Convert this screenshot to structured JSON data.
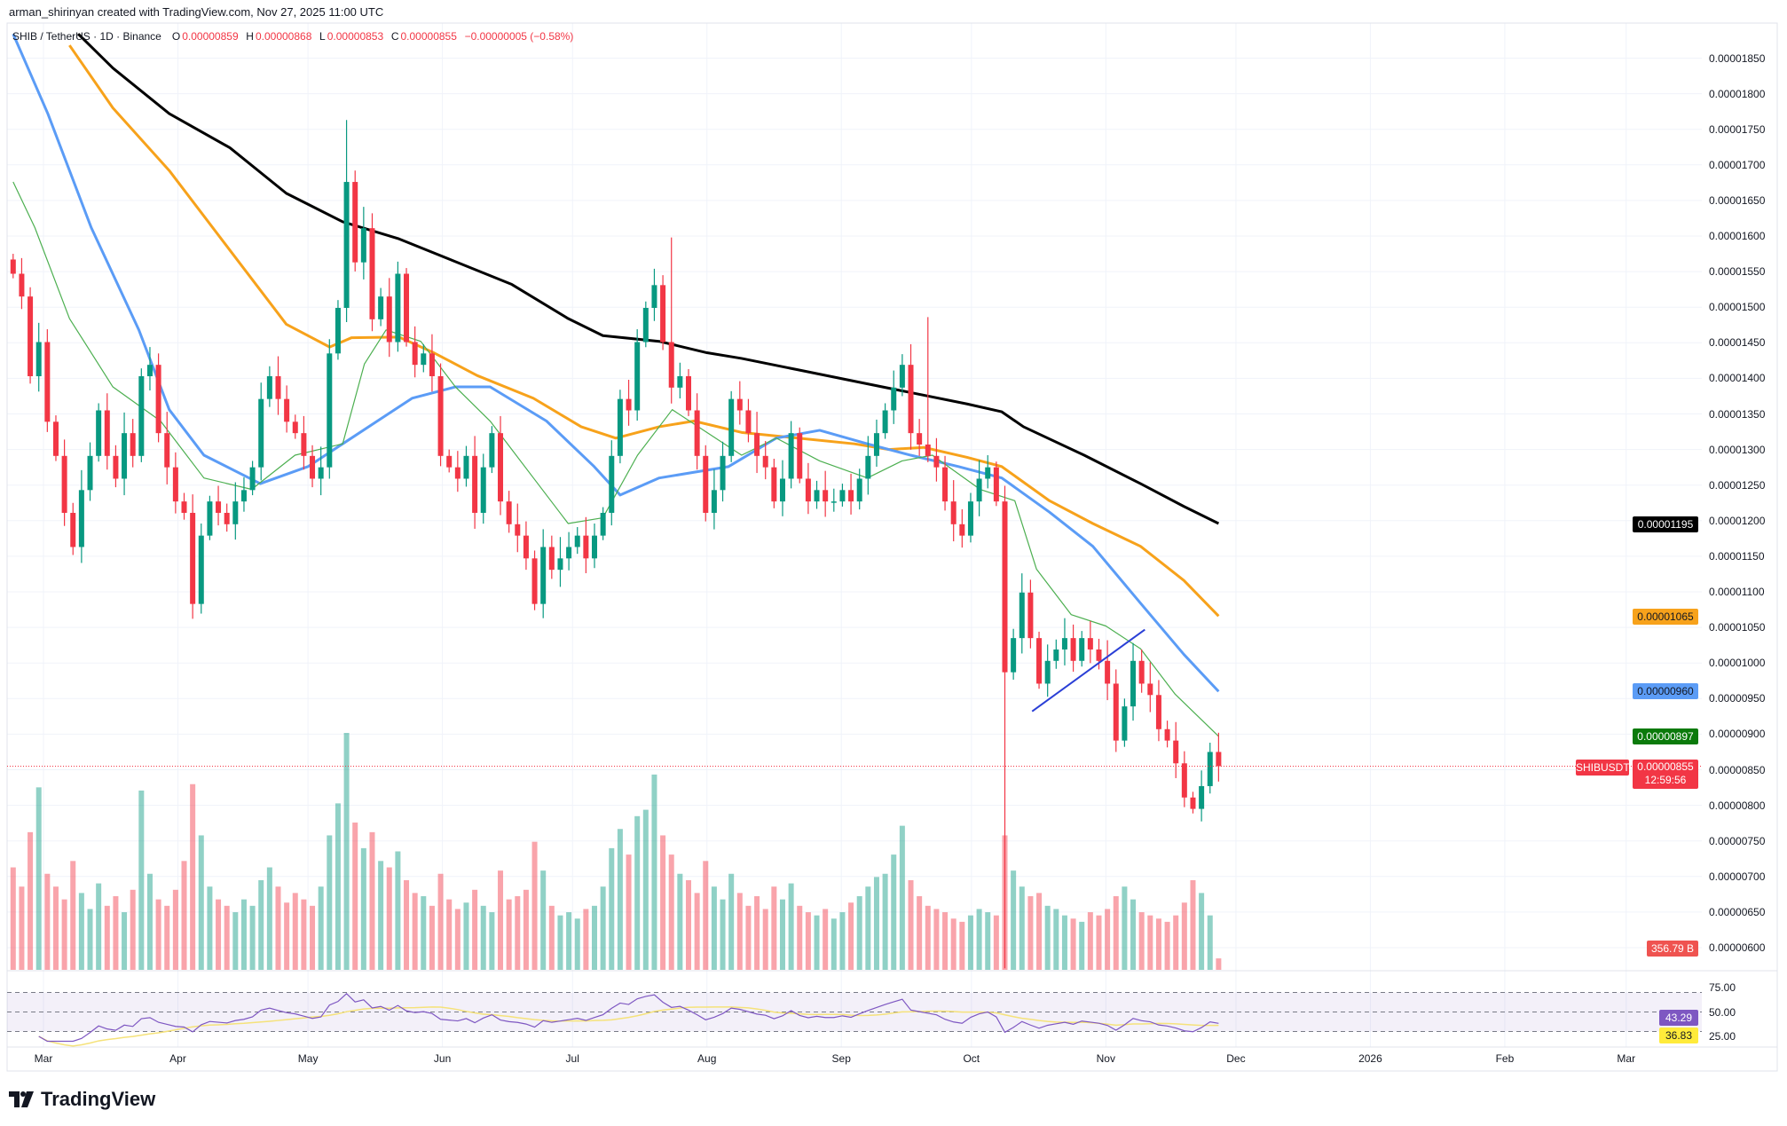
{
  "header": {
    "credit": "arman_shirinyan created with TradingView.com, Nov 27, 2025 11:00 UTC"
  },
  "legend": {
    "symbol": "SHIB / TetherUS · 1D · Binance",
    "o_label": "O",
    "o": "0.00000859",
    "h_label": "H",
    "h": "0.00000868",
    "l_label": "L",
    "l": "0.00000853",
    "c_label": "C",
    "c": "0.00000855",
    "change": "−0.00000005 (−0.58%)"
  },
  "badges": {
    "ma200": "0.00001195",
    "ma100": "0.00001065",
    "ma50": "0.00000960",
    "ma20": "0.00000897",
    "symbol": "SHIBUSDT",
    "last_price": "0.00000855",
    "countdown": "12:59:56",
    "volume": "356.79 B",
    "rsi": "43.29",
    "rsi_ma": "36.83"
  },
  "brand": "TradingView",
  "colors": {
    "up": "#089981",
    "down": "#f23645",
    "ma200": "#000000",
    "ma100": "#f7a21b",
    "ma50": "#5b9cf6",
    "ma20": "#4caf50",
    "ma20_badge": "#0b7a0b",
    "rsi": "#7e57c2",
    "rsi_ma": "#f5e27a",
    "trendline": "#2a3fd6"
  },
  "chart_data": {
    "type": "candlestick",
    "title": "SHIB / TetherUS · 1D · Binance",
    "price_unit": "1e-8 USDT",
    "period": "2025-02-22 to 2025-11-27 (sampled ~every 2 days)",
    "y_axis": {
      "min": 600,
      "max": 1850,
      "step": 50,
      "tick_labels": [
        "0.00001850",
        "0.00001800",
        "0.00001750",
        "0.00001700",
        "0.00001650",
        "0.00001600",
        "0.00001550",
        "0.00001500",
        "0.00001450",
        "0.00001400",
        "0.00001350",
        "0.00001300",
        "0.00001250",
        "0.00001200",
        "0.00001150",
        "0.00001100",
        "0.00001050",
        "0.00001000",
        "0.00000950",
        "0.00000900",
        "0.00000850",
        "0.00000800",
        "0.00000750",
        "0.00000700",
        "0.00000650",
        "0.00000600"
      ]
    },
    "x_axis": {
      "ticks": [
        {
          "label": "Mar",
          "day": 7
        },
        {
          "label": "Apr",
          "day": 38
        },
        {
          "label": "May",
          "day": 68
        },
        {
          "label": "Jun",
          "day": 99
        },
        {
          "label": "Jul",
          "day": 129
        },
        {
          "label": "Aug",
          "day": 160
        },
        {
          "label": "Sep",
          "day": 191
        },
        {
          "label": "Oct",
          "day": 221
        },
        {
          "label": "Nov",
          "day": 252
        },
        {
          "label": "Dec",
          "day": 282
        },
        {
          "label": "2026",
          "day": 313
        },
        {
          "label": "Feb",
          "day": 344
        },
        {
          "label": "Mar",
          "day": 372
        }
      ],
      "last_day": 278
    },
    "closes": [
      1547,
      1515,
      1403,
      1451,
      1339,
      1291,
      1211,
      1163,
      1243,
      1291,
      1355,
      1291,
      1259,
      1323,
      1291,
      1403,
      1419,
      1323,
      1275,
      1227,
      1211,
      1083,
      1179,
      1227,
      1211,
      1195,
      1227,
      1243,
      1275,
      1371,
      1403,
      1371,
      1339,
      1323,
      1291,
      1259,
      1275,
      1435,
      1499,
      1676,
      1563,
      1611,
      1483,
      1515,
      1451,
      1547,
      1451,
      1419,
      1435,
      1403,
      1291,
      1275,
      1259,
      1291,
      1211,
      1275,
      1323,
      1227,
      1195,
      1179,
      1147,
      1083,
      1163,
      1131,
      1147,
      1163,
      1179,
      1147,
      1179,
      1211,
      1291,
      1371,
      1355,
      1451,
      1499,
      1531,
      1451,
      1387,
      1403,
      1355,
      1291,
      1211,
      1243,
      1291,
      1371,
      1355,
      1323,
      1291,
      1275,
      1227,
      1259,
      1323,
      1259,
      1227,
      1243,
      1227,
      1227,
      1243,
      1227,
      1259,
      1291,
      1323,
      1355,
      1387,
      1419,
      1323,
      1307,
      1291,
      1275,
      1227,
      1195,
      1179,
      1227,
      1259,
      1275,
      1227,
      987,
      1035,
      1099,
      1035,
      971,
      1003,
      1019,
      1035,
      1003,
      1035,
      1019,
      1003,
      971,
      891,
      939,
      1003,
      971,
      955,
      907,
      891,
      859,
      811,
      795,
      827,
      875,
      855
    ],
    "wick_overrides": [
      {
        "index": 39,
        "high": 1763
      },
      {
        "index": 116,
        "low": 571
      },
      {
        "index": 107,
        "high": 1486
      },
      {
        "index": 77,
        "high": 1598
      }
    ],
    "volume_unit": "B",
    "volumes": [
      3200,
      2600,
      4300,
      5700,
      3000,
      2600,
      2200,
      3400,
      2400,
      1900,
      2700,
      2000,
      2300,
      1800,
      2500,
      5600,
      3000,
      2200,
      2000,
      2500,
      3400,
      5800,
      4200,
      2600,
      2200,
      2000,
      1800,
      2200,
      2000,
      2800,
      3200,
      2600,
      2100,
      2400,
      2200,
      2000,
      2600,
      4200,
      5200,
      7400,
      4600,
      3800,
      4300,
      3400,
      3200,
      3700,
      2800,
      2400,
      2300,
      2000,
      3000,
      2200,
      1900,
      2100,
      2500,
      2000,
      1800,
      3100,
      2200,
      2300,
      2500,
      4000,
      3100,
      2000,
      1700,
      1800,
      1600,
      1900,
      2000,
      2600,
      3800,
      4400,
      3600,
      4800,
      5000,
      6100,
      4200,
      3600,
      3000,
      2800,
      2400,
      3400,
      2600,
      2200,
      3000,
      2400,
      2000,
      2300,
      1900,
      2600,
      2200,
      2700,
      2000,
      1800,
      1700,
      1900,
      1600,
      1800,
      2100,
      2300,
      2600,
      2900,
      3000,
      3600,
      4500,
      2800,
      2300,
      2000,
      1900,
      1800,
      1600,
      1500,
      1700,
      1900,
      1800,
      1700,
      4200,
      3100,
      2600,
      2300,
      2400,
      2000,
      1900,
      1700,
      1600,
      1500,
      1800,
      1700,
      1900,
      2300,
      2600,
      2200,
      1800,
      1700,
      1600,
      1500,
      1700,
      2100,
      2800,
      2400,
      1700,
      357
    ],
    "moving_averages": [
      {
        "name": "MA200",
        "color": "#000000",
        "points": [
          [
            15,
            1884
          ],
          [
            23,
            1836
          ],
          [
            36,
            1772
          ],
          [
            50,
            1724
          ],
          [
            63,
            1660
          ],
          [
            76,
            1620
          ],
          [
            89,
            1596
          ],
          [
            102,
            1564
          ],
          [
            115,
            1532
          ],
          [
            128,
            1484
          ],
          [
            136,
            1460
          ],
          [
            149,
            1452
          ],
          [
            160,
            1436
          ],
          [
            168,
            1428
          ],
          [
            181,
            1412
          ],
          [
            194,
            1396
          ],
          [
            207,
            1380
          ],
          [
            220,
            1364
          ],
          [
            228,
            1353
          ],
          [
            233,
            1332
          ],
          [
            247,
            1292
          ],
          [
            260,
            1252
          ],
          [
            270,
            1220
          ],
          [
            278,
            1196
          ]
        ]
      },
      {
        "name": "MA100",
        "color": "#f7a21b",
        "points": [
          [
            13,
            1868
          ],
          [
            23,
            1780
          ],
          [
            36,
            1692
          ],
          [
            50,
            1580
          ],
          [
            63,
            1476
          ],
          [
            73,
            1444
          ],
          [
            78,
            1457
          ],
          [
            89,
            1458
          ],
          [
            97,
            1436
          ],
          [
            107,
            1404
          ],
          [
            120,
            1372
          ],
          [
            131,
            1332
          ],
          [
            139,
            1316
          ],
          [
            149,
            1332
          ],
          [
            157,
            1340
          ],
          [
            168,
            1324
          ],
          [
            181,
            1316
          ],
          [
            194,
            1308
          ],
          [
            202,
            1300
          ],
          [
            210,
            1303
          ],
          [
            220,
            1289
          ],
          [
            228,
            1276
          ],
          [
            239,
            1228
          ],
          [
            249,
            1196
          ],
          [
            260,
            1164
          ],
          [
            270,
            1116
          ],
          [
            278,
            1066
          ]
        ]
      },
      {
        "name": "MA50",
        "color": "#5b9cf6",
        "points": [
          [
            0,
            1884
          ],
          [
            8,
            1772
          ],
          [
            18,
            1612
          ],
          [
            29,
            1468
          ],
          [
            36,
            1356
          ],
          [
            44,
            1292
          ],
          [
            57,
            1252
          ],
          [
            68,
            1276
          ],
          [
            76,
            1308
          ],
          [
            84,
            1340
          ],
          [
            92,
            1372
          ],
          [
            102,
            1388
          ],
          [
            110,
            1388
          ],
          [
            123,
            1340
          ],
          [
            134,
            1276
          ],
          [
            140,
            1236
          ],
          [
            149,
            1260
          ],
          [
            157,
            1268
          ],
          [
            165,
            1276
          ],
          [
            176,
            1316
          ],
          [
            186,
            1327
          ],
          [
            197,
            1308
          ],
          [
            207,
            1292
          ],
          [
            218,
            1276
          ],
          [
            228,
            1260
          ],
          [
            239,
            1212
          ],
          [
            249,
            1164
          ],
          [
            260,
            1084
          ],
          [
            270,
            1012
          ],
          [
            278,
            960
          ]
        ]
      },
      {
        "name": "MA20",
        "color": "#4caf50",
        "points": [
          [
            0,
            1676
          ],
          [
            5,
            1612
          ],
          [
            13,
            1484
          ],
          [
            23,
            1388
          ],
          [
            34,
            1340
          ],
          [
            44,
            1260
          ],
          [
            55,
            1244
          ],
          [
            65,
            1292
          ],
          [
            76,
            1308
          ],
          [
            81,
            1420
          ],
          [
            86,
            1468
          ],
          [
            94,
            1452
          ],
          [
            102,
            1388
          ],
          [
            110,
            1340
          ],
          [
            120,
            1260
          ],
          [
            128,
            1196
          ],
          [
            136,
            1204
          ],
          [
            144,
            1292
          ],
          [
            152,
            1356
          ],
          [
            160,
            1324
          ],
          [
            168,
            1292
          ],
          [
            176,
            1316
          ],
          [
            186,
            1284
          ],
          [
            197,
            1260
          ],
          [
            205,
            1284
          ],
          [
            212,
            1292
          ],
          [
            223,
            1244
          ],
          [
            231,
            1228
          ],
          [
            236,
            1132
          ],
          [
            244,
            1068
          ],
          [
            252,
            1052
          ],
          [
            260,
            1020
          ],
          [
            268,
            956
          ],
          [
            278,
            897
          ]
        ]
      }
    ],
    "trendline": {
      "from": [
        235,
        932
      ],
      "to": [
        261,
        1047
      ]
    },
    "rsi": {
      "period": 14,
      "ma_period": 14,
      "levels": [
        70,
        50,
        30
      ],
      "tick_labels": [
        "75.00",
        "50.00",
        "25.00"
      ]
    }
  }
}
